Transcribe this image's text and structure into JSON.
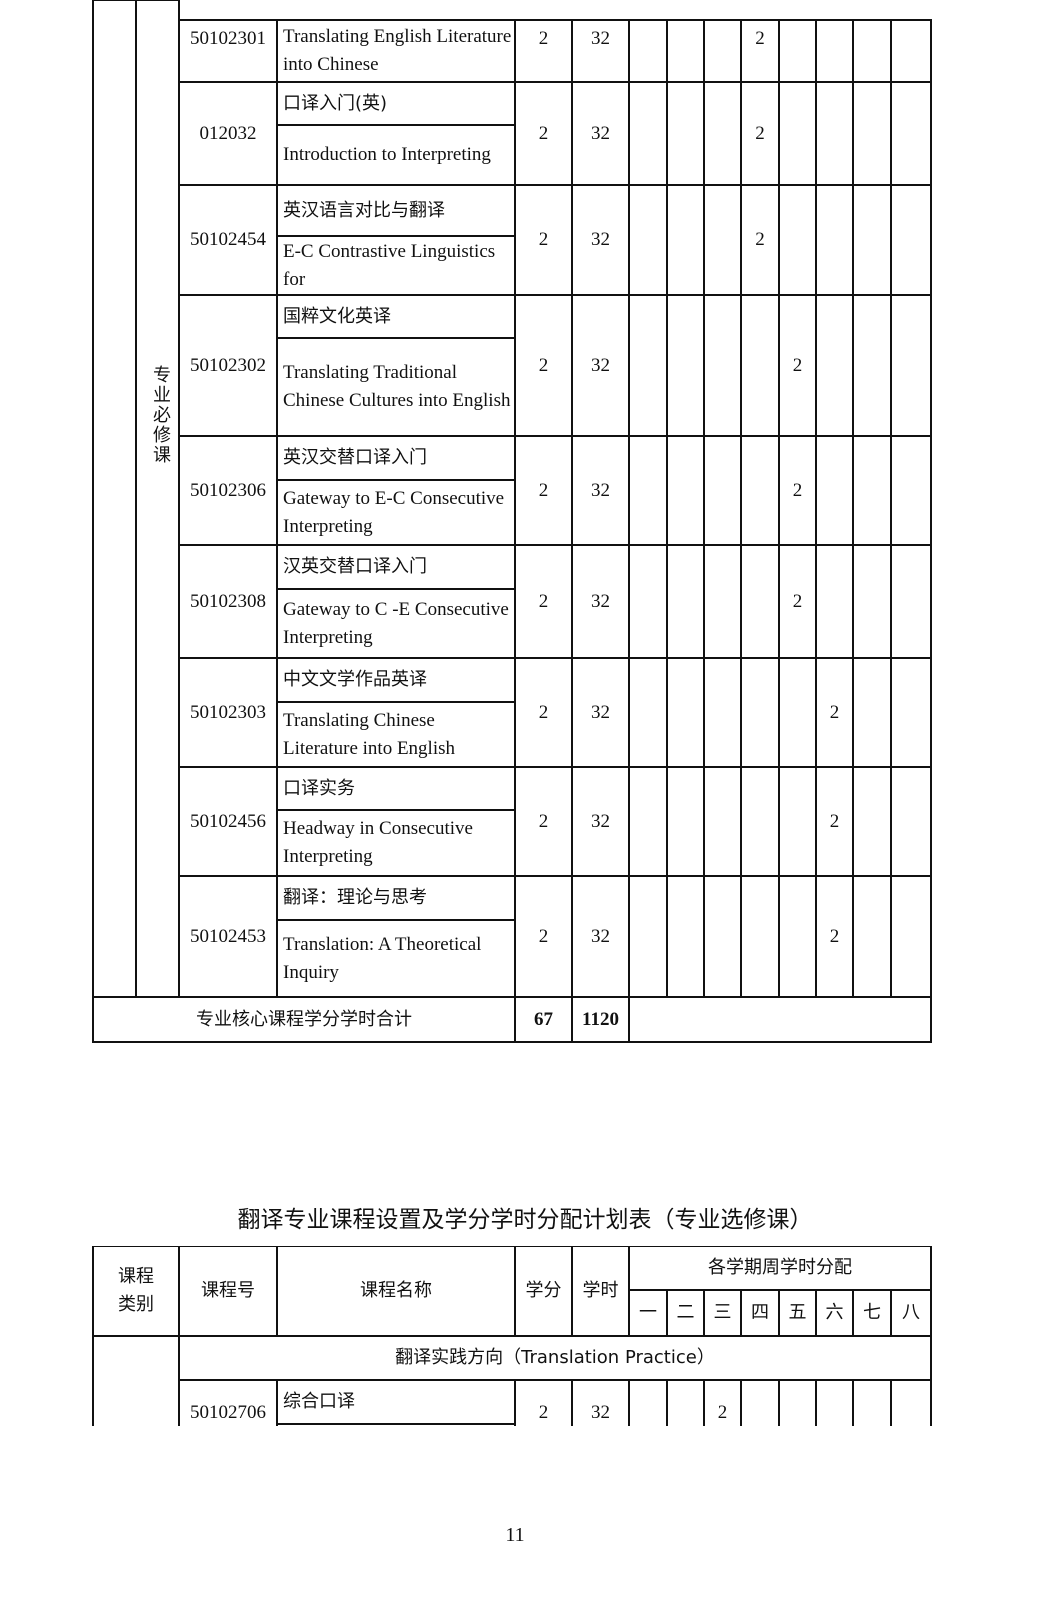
{
  "table1": {
    "category": "专业必修课",
    "rows": [
      {
        "code": "50102301",
        "name_zh": "",
        "name_en": "Translating English Literature into Chinese",
        "credits": "2",
        "hours": "32",
        "semester": 4,
        "weekly": "2"
      },
      {
        "code": "012032",
        "name_zh": "口译入门(英)",
        "name_en": "Introduction to Interpreting",
        "credits": "2",
        "hours": "32",
        "semester": 4,
        "weekly": "2"
      },
      {
        "code": "50102454",
        "name_zh": "英汉语言对比与翻译",
        "name_en": "E-C Contrastive Linguistics for",
        "credits": "2",
        "hours": "32",
        "semester": 4,
        "weekly": "2"
      },
      {
        "code": "50102302",
        "name_zh": "国粹文化英译",
        "name_en": "Translating Traditional Chinese Cultures into English",
        "credits": "2",
        "hours": "32",
        "semester": 5,
        "weekly": "2"
      },
      {
        "code": "50102306",
        "name_zh": "英汉交替口译入门",
        "name_en": "Gateway to E-C Consecutive Interpreting",
        "credits": "2",
        "hours": "32",
        "semester": 5,
        "weekly": "2"
      },
      {
        "code": "50102308",
        "name_zh": "汉英交替口译入门",
        "name_en": "Gateway to C -E Consecutive Interpreting",
        "credits": "2",
        "hours": "32",
        "semester": 5,
        "weekly": "2"
      },
      {
        "code": "50102303",
        "name_zh": "中文文学作品英译",
        "name_en": "Translating Chinese Literature into English",
        "credits": "2",
        "hours": "32",
        "semester": 6,
        "weekly": "2"
      },
      {
        "code": "50102456",
        "name_zh": "口译实务",
        "name_en": "Headway in Consecutive Interpreting",
        "credits": "2",
        "hours": "32",
        "semester": 6,
        "weekly": "2"
      },
      {
        "code": "50102453",
        "name_zh": "翻译：理论与思考",
        "name_en": "Translation: A Theoretical Inquiry",
        "credits": "2",
        "hours": "32",
        "semester": 6,
        "weekly": "2"
      }
    ],
    "total": {
      "label": "专业核心课程学分学时合计",
      "credits": "67",
      "hours": "1120"
    }
  },
  "table2": {
    "title": "翻译专业课程设置及学分学时分配计划表（专业选修课）",
    "headers": {
      "category": "课程\n类别",
      "code": "课程号",
      "name": "课程名称",
      "credits": "学分",
      "hours": "学时",
      "semesters_group": "各学期周学时分配",
      "semesters": [
        "一",
        "二",
        "三",
        "四",
        "五",
        "六",
        "七",
        "八"
      ]
    },
    "section": "翻译实践方向（Translation Practice）",
    "rows": [
      {
        "code": "50102706",
        "name_zh": "综合口译",
        "credits": "2",
        "hours": "32",
        "semester": 3,
        "weekly": "2"
      }
    ]
  },
  "page_number": "11"
}
